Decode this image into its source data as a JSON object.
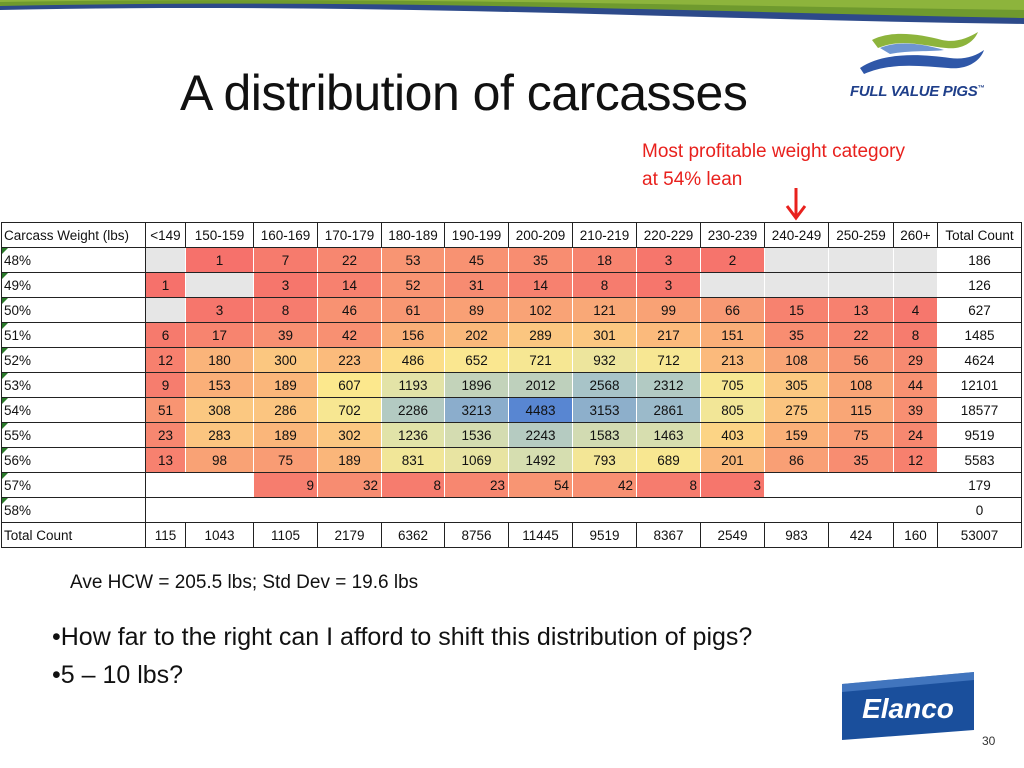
{
  "title": "A distribution of carcasses",
  "logo_text": "FULL VALUE PIGS",
  "logo_tm": "™",
  "callout": {
    "line1": "Most profitable weight category",
    "line2": "at 54% lean"
  },
  "table": {
    "corner": "Carcass Weight (lbs)",
    "columns": [
      "<149",
      "150-159",
      "160-169",
      "170-179",
      "180-189",
      "190-199",
      "200-209",
      "210-219",
      "220-229",
      "230-239",
      "240-249",
      "250-259",
      "260+"
    ],
    "total_header": "Total Count",
    "rows": [
      {
        "label": "48%",
        "cells": [
          "",
          "1",
          "7",
          "22",
          "53",
          "45",
          "35",
          "18",
          "3",
          "2",
          "",
          "",
          ""
        ],
        "total": "186"
      },
      {
        "label": "49%",
        "cells": [
          "1",
          "",
          "3",
          "14",
          "52",
          "31",
          "14",
          "8",
          "3",
          "",
          "",
          "",
          ""
        ],
        "total": "126"
      },
      {
        "label": "50%",
        "cells": [
          "",
          "3",
          "8",
          "46",
          "61",
          "89",
          "102",
          "121",
          "99",
          "66",
          "15",
          "13",
          "4"
        ],
        "total": "627"
      },
      {
        "label": "51%",
        "cells": [
          "6",
          "17",
          "39",
          "42",
          "156",
          "202",
          "289",
          "301",
          "217",
          "151",
          "35",
          "22",
          "8"
        ],
        "total": "1485"
      },
      {
        "label": "52%",
        "cells": [
          "12",
          "180",
          "300",
          "223",
          "486",
          "652",
          "721",
          "932",
          "712",
          "213",
          "108",
          "56",
          "29"
        ],
        "total": "4624"
      },
      {
        "label": "53%",
        "cells": [
          "9",
          "153",
          "189",
          "607",
          "1193",
          "1896",
          "2012",
          "2568",
          "2312",
          "705",
          "305",
          "108",
          "44"
        ],
        "total": "12101"
      },
      {
        "label": "54%",
        "cells": [
          "51",
          "308",
          "286",
          "702",
          "2286",
          "3213",
          "4483",
          "3153",
          "2861",
          "805",
          "275",
          "115",
          "39"
        ],
        "total": "18577"
      },
      {
        "label": "55%",
        "cells": [
          "23",
          "283",
          "189",
          "302",
          "1236",
          "1536",
          "2243",
          "1583",
          "1463",
          "403",
          "159",
          "75",
          "24"
        ],
        "total": "9519"
      },
      {
        "label": "56%",
        "cells": [
          "13",
          "98",
          "75",
          "189",
          "831",
          "1069",
          "1492",
          "793",
          "689",
          "201",
          "86",
          "35",
          "12"
        ],
        "total": "5583"
      },
      {
        "label": "57%",
        "cells": [
          "",
          "",
          "9",
          "32",
          "8",
          "23",
          "54",
          "42",
          "8",
          "3",
          "",
          "",
          ""
        ],
        "total": "179"
      },
      {
        "label": "58%",
        "cells": [
          "",
          "",
          "",
          "",
          "",
          "",
          "",
          "",
          "",
          "",
          "",
          "",
          ""
        ],
        "total": "0"
      }
    ],
    "footer": {
      "label": "Total Count",
      "cells": [
        "115",
        "1043",
        "1105",
        "2179",
        "6362",
        "8756",
        "11445",
        "9519",
        "8367",
        "2549",
        "983",
        "424",
        "160"
      ],
      "total": "53007"
    }
  },
  "stats": "Ave HCW = 205.5 lbs;  Std Dev = 19.6 lbs",
  "bullets": [
    "•How far to the right can I afford to shift this distribution of pigs?",
    "•5 – 10 lbs?"
  ],
  "elanco_text": "Elanco",
  "page_number": "30",
  "colors": {
    "accent_red": "#e8211d",
    "title": "#111111",
    "brand_blue": "#1f3f8a",
    "topbar_green": "#6f9a2e",
    "topbar_blue": "#2d4a8a"
  }
}
